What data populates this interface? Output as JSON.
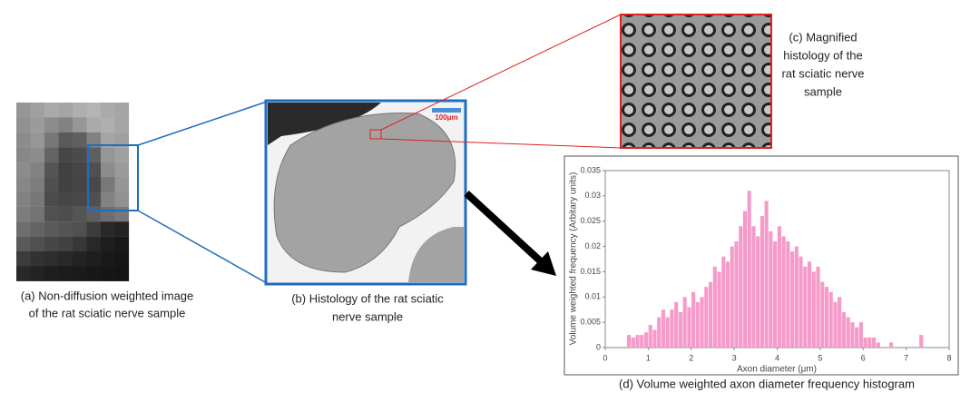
{
  "panels": {
    "a": {
      "caption": [
        "(a) Non-diffusion weighted image",
        "of the rat sciatic nerve sample"
      ]
    },
    "b": {
      "caption": [
        "(b) Histology of the rat sciatic",
        "nerve sample"
      ],
      "scale_bar": "100μm"
    },
    "c": {
      "caption": [
        "(c) Magnified",
        "histology of the",
        "rat sciatic nerve",
        "sample"
      ]
    }
  },
  "chart_data": {
    "type": "histogram",
    "title": "(d) Volume weighted axon diameter frequency histogram",
    "x_label": "Axon diameter (μm)",
    "y_label": "Volume weighted frequency (Arbitary units)",
    "color": "#f59ac9",
    "bins": [
      0.5,
      0.6,
      0.7,
      0.8,
      0.9,
      1.0,
      1.1,
      1.2,
      1.3,
      1.4,
      1.5,
      1.6,
      1.7,
      1.8,
      1.9,
      2.0,
      2.1,
      2.2,
      2.3,
      2.4,
      2.5,
      2.6,
      2.7,
      2.8,
      2.9,
      3.0,
      3.1,
      3.2,
      3.3,
      3.4,
      3.5,
      3.6,
      3.7,
      3.8,
      3.9,
      4.0,
      4.1,
      4.2,
      4.3,
      4.4,
      4.5,
      4.6,
      4.7,
      4.8,
      4.9,
      5.0,
      5.1,
      5.2,
      5.3,
      5.4,
      5.5,
      5.6,
      5.7,
      5.8,
      5.9,
      6.0,
      6.1,
      6.2,
      6.3,
      6.4,
      6.5,
      6.6,
      6.7,
      6.8,
      6.9,
      7.0,
      7.1,
      7.2,
      7.3,
      7.4,
      7.5
    ],
    "values": [
      0.0025,
      0.002,
      0.0025,
      0.0025,
      0.003,
      0.0045,
      0.0035,
      0.006,
      0.0075,
      0.006,
      0.0075,
      0.009,
      0.007,
      0.01,
      0.008,
      0.011,
      0.009,
      0.01,
      0.012,
      0.013,
      0.016,
      0.015,
      0.018,
      0.017,
      0.02,
      0.021,
      0.024,
      0.027,
      0.031,
      0.024,
      0.022,
      0.026,
      0.029,
      0.023,
      0.021,
      0.024,
      0.022,
      0.021,
      0.019,
      0.02,
      0.018,
      0.016,
      0.017,
      0.015,
      0.016,
      0.013,
      0.012,
      0.011,
      0.009,
      0.01,
      0.007,
      0.006,
      0.005,
      0.004,
      0.005,
      0.002,
      0.002,
      0.002,
      0.001,
      0,
      0,
      0.001,
      0,
      0,
      0,
      0,
      0,
      0,
      0.0025,
      0
    ],
    "xlim": [
      0,
      8
    ],
    "xticks": [
      0,
      1,
      2,
      3,
      4,
      5,
      6,
      7,
      8
    ],
    "ylim": [
      0,
      0.035
    ],
    "yticks": [
      0,
      0.005,
      0.01,
      0.015,
      0.02,
      0.025,
      0.03,
      0.035
    ]
  }
}
